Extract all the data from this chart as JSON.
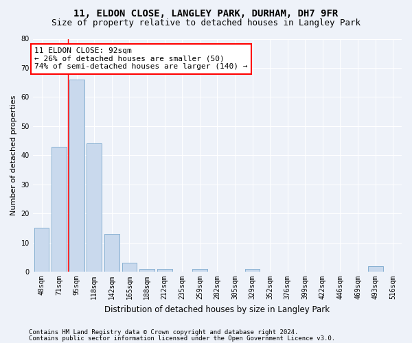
{
  "title1": "11, ELDON CLOSE, LANGLEY PARK, DURHAM, DH7 9FR",
  "title2": "Size of property relative to detached houses in Langley Park",
  "xlabel": "Distribution of detached houses by size in Langley Park",
  "ylabel": "Number of detached properties",
  "footer1": "Contains HM Land Registry data © Crown copyright and database right 2024.",
  "footer2": "Contains public sector information licensed under the Open Government Licence v3.0.",
  "bin_labels": [
    "48sqm",
    "71sqm",
    "95sqm",
    "118sqm",
    "142sqm",
    "165sqm",
    "188sqm",
    "212sqm",
    "235sqm",
    "259sqm",
    "282sqm",
    "305sqm",
    "329sqm",
    "352sqm",
    "376sqm",
    "399sqm",
    "422sqm",
    "446sqm",
    "469sqm",
    "493sqm",
    "516sqm"
  ],
  "values": [
    15,
    43,
    66,
    44,
    13,
    3,
    1,
    1,
    0,
    1,
    0,
    0,
    1,
    0,
    0,
    0,
    0,
    0,
    0,
    2,
    0
  ],
  "bar_color": "#c9d9ed",
  "bar_edge_color": "#7aa8cc",
  "ylim": [
    0,
    80
  ],
  "yticks": [
    0,
    10,
    20,
    30,
    40,
    50,
    60,
    70,
    80
  ],
  "red_line_x": 1.5,
  "annotation_text1": "11 ELDON CLOSE: 92sqm",
  "annotation_text2": "← 26% of detached houses are smaller (50)",
  "annotation_text3": "74% of semi-detached houses are larger (140) →",
  "bg_color": "#eef2f9",
  "plot_bg_color": "#eef2f9",
  "grid_color": "#ffffff",
  "title1_fontsize": 10,
  "title2_fontsize": 9,
  "xlabel_fontsize": 8.5,
  "ylabel_fontsize": 8,
  "tick_fontsize": 7,
  "annotation_fontsize": 8,
  "footer_fontsize": 6.5
}
